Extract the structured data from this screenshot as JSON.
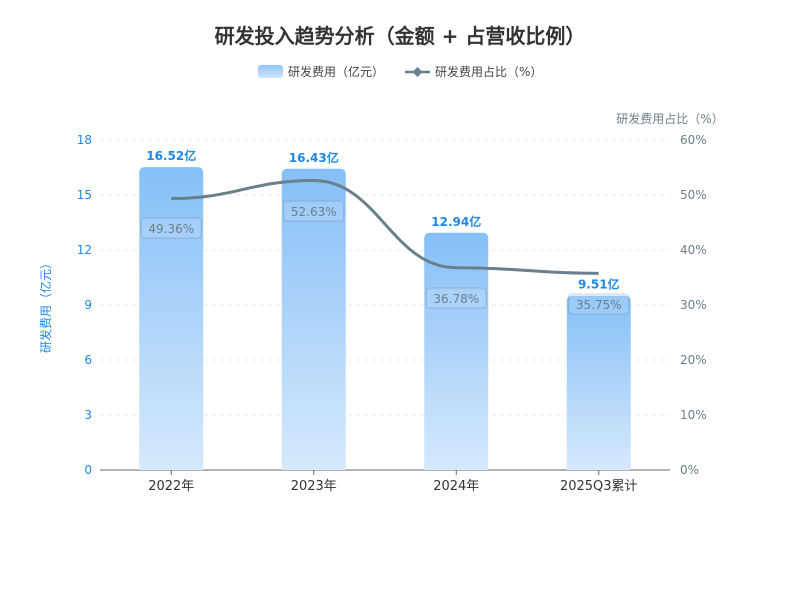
{
  "chart_data": {
    "type": "bar+line",
    "title": "研发投入趋势分析（金额 + 占营收比例）",
    "categories": [
      "2022年",
      "2023年",
      "2024年",
      "2025Q3累计"
    ],
    "series": [
      {
        "name": "研发费用（亿元）",
        "type": "bar",
        "axis": "left",
        "values": [
          16.52,
          16.43,
          12.94,
          9.51
        ],
        "labels": [
          "16.52亿",
          "16.43亿",
          "12.94亿",
          "9.51亿"
        ]
      },
      {
        "name": "研发费用占比（%）",
        "type": "line",
        "axis": "right",
        "values": [
          49.36,
          52.63,
          36.78,
          35.75
        ],
        "labels": [
          "49.36%",
          "52.63%",
          "36.78%",
          "35.75%"
        ]
      }
    ],
    "ylabel": "研发费用（亿元）",
    "y2label": "研发费用占比（%）",
    "ylim": [
      0,
      18
    ],
    "yticks": [
      "0",
      "3",
      "6",
      "9",
      "12",
      "15",
      "18"
    ],
    "y2lim": [
      0,
      60
    ],
    "y2ticks": [
      "0%",
      "10%",
      "20%",
      "30%",
      "40%",
      "50%",
      "60%"
    ],
    "grid": true,
    "legend": "top-center",
    "colors": {
      "bar": "#7fbdf7",
      "bar_light": "#d6e9fc",
      "line": "#6a7f8c",
      "left_axis": "#1e88e5",
      "right_axis": "#6a7f8c"
    }
  }
}
